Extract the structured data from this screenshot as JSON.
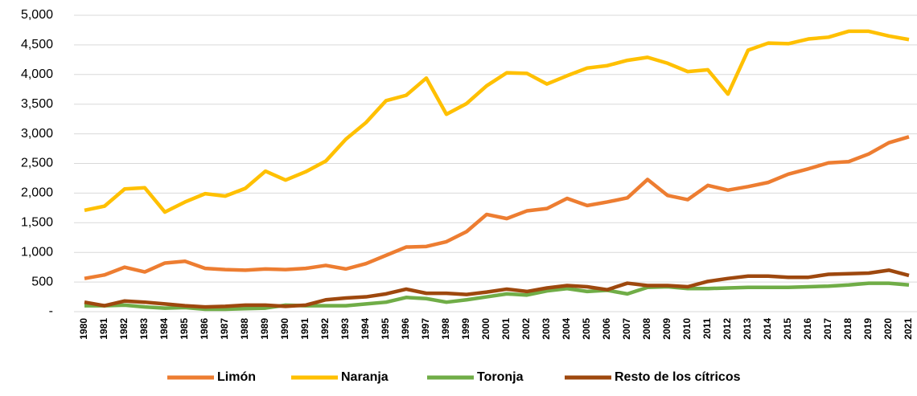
{
  "chart_data": {
    "type": "line",
    "categories": [
      "1980",
      "1981",
      "1982",
      "1983",
      "1984",
      "1985",
      "1986",
      "1987",
      "1988",
      "1989",
      "1990",
      "1991",
      "1992",
      "1993",
      "1994",
      "1995",
      "1996",
      "1997",
      "1998",
      "1999",
      "2000",
      "2001",
      "2002",
      "2003",
      "2004",
      "2005",
      "2006",
      "2007",
      "2008",
      "2009",
      "2010",
      "2011",
      "2012",
      "2013",
      "2014",
      "2015",
      "2016",
      "2017",
      "2018",
      "2019",
      "2020",
      "2021"
    ],
    "series": [
      {
        "name": "Limón",
        "color": "#ED7D31",
        "values": [
          560,
          620,
          750,
          670,
          820,
          850,
          730,
          710,
          700,
          720,
          710,
          730,
          780,
          720,
          810,
          950,
          1090,
          1100,
          1180,
          1350,
          1640,
          1570,
          1700,
          1740,
          1910,
          1790,
          1850,
          1920,
          2230,
          1960,
          1890,
          2130,
          2050,
          2110,
          2180,
          2320,
          2410,
          2510,
          2530,
          2660,
          2850,
          2950
        ]
      },
      {
        "name": "Naranja",
        "color": "#FFC000",
        "values": [
          1710,
          1780,
          2070,
          2090,
          1680,
          1850,
          1990,
          1950,
          2080,
          2370,
          2220,
          2360,
          2540,
          2910,
          3190,
          3560,
          3650,
          3940,
          3330,
          3510,
          3810,
          4030,
          4020,
          3840,
          3980,
          4110,
          4150,
          4240,
          4290,
          4190,
          4050,
          4080,
          3670,
          4410,
          4530,
          4520,
          4600,
          4630,
          4730,
          4730,
          4650,
          4590
        ]
      },
      {
        "name": "Toronja",
        "color": "#70AD47",
        "values": [
          100,
          100,
          110,
          80,
          60,
          70,
          40,
          40,
          50,
          60,
          110,
          100,
          100,
          100,
          130,
          160,
          240,
          220,
          160,
          200,
          250,
          300,
          280,
          350,
          390,
          340,
          360,
          300,
          410,
          420,
          390,
          390,
          400,
          410,
          410,
          410,
          420,
          430,
          450,
          480,
          480,
          450
        ]
      },
      {
        "name": "Resto de los cítricos",
        "color": "#9E480E",
        "values": [
          160,
          100,
          180,
          160,
          130,
          100,
          80,
          90,
          110,
          110,
          90,
          110,
          200,
          230,
          250,
          300,
          380,
          310,
          310,
          290,
          330,
          380,
          340,
          400,
          440,
          420,
          370,
          480,
          440,
          440,
          420,
          510,
          560,
          600,
          600,
          580,
          580,
          630,
          640,
          650,
          700,
          610
        ]
      }
    ],
    "ylim": [
      0,
      5000
    ],
    "yticks": [
      {
        "value": 0,
        "label": "-"
      },
      {
        "value": 500,
        "label": "500"
      },
      {
        "value": 1000,
        "label": "1,000"
      },
      {
        "value": 1500,
        "label": "1,500"
      },
      {
        "value": 2000,
        "label": "2,000"
      },
      {
        "value": 2500,
        "label": "2,500"
      },
      {
        "value": 3000,
        "label": "3,000"
      },
      {
        "value": 3500,
        "label": "3,500"
      },
      {
        "value": 4000,
        "label": "4,000"
      },
      {
        "value": 4500,
        "label": "4,500"
      },
      {
        "value": 5000,
        "label": "5,000"
      }
    ],
    "grid": true,
    "legend": "bottom"
  }
}
